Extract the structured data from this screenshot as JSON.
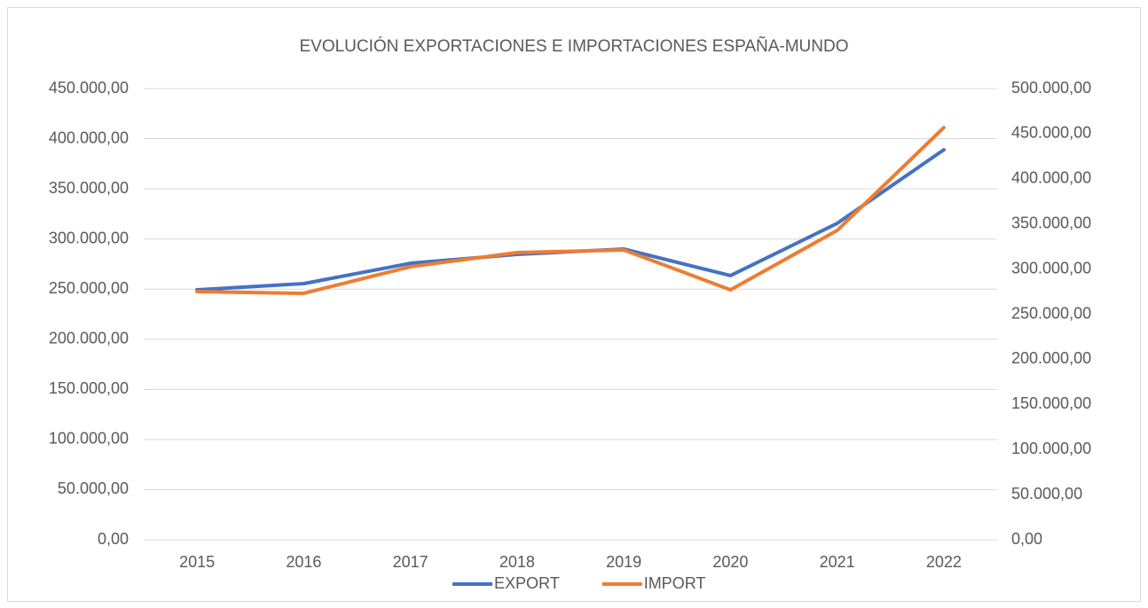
{
  "chart_data": {
    "type": "line",
    "title": "EVOLUCIÓN EXPORTACIONES E IMPORTACIONES ESPAÑA-MUNDO",
    "categories": [
      "2015",
      "2016",
      "2017",
      "2018",
      "2019",
      "2020",
      "2021",
      "2022"
    ],
    "series": [
      {
        "name": "EXPORT",
        "color": "#4472c4",
        "values": [
          249300,
          255500,
          275800,
          284700,
          290000,
          263500,
          315600,
          389000
        ]
      },
      {
        "name": "IMPORT",
        "color": "#ed7d31",
        "axis": "y2",
        "values": [
          275000,
          273100,
          302600,
          318300,
          321200,
          277000,
          342800,
          456800
        ]
      }
    ],
    "ylim": [
      0,
      450000
    ],
    "yticks": [
      {
        "value": 0,
        "label": "0,00"
      },
      {
        "value": 50000,
        "label": "50.000,00"
      },
      {
        "value": 100000,
        "label": "100.000,00"
      },
      {
        "value": 150000,
        "label": "150.000,00"
      },
      {
        "value": 200000,
        "label": "200.000,00"
      },
      {
        "value": 250000,
        "label": "250.000,00"
      },
      {
        "value": 300000,
        "label": "300.000,00"
      },
      {
        "value": 350000,
        "label": "350.000,00"
      },
      {
        "value": 400000,
        "label": "400.000,00"
      },
      {
        "value": 450000,
        "label": "450.000,00"
      }
    ],
    "y2lim": [
      0,
      500000
    ],
    "y2ticks": [
      {
        "value": 0,
        "label": "0,00"
      },
      {
        "value": 50000,
        "label": "50.000,00"
      },
      {
        "value": 100000,
        "label": "100.000,00"
      },
      {
        "value": 150000,
        "label": "150.000,00"
      },
      {
        "value": 200000,
        "label": "200.000,00"
      },
      {
        "value": 250000,
        "label": "250.000,00"
      },
      {
        "value": 300000,
        "label": "300.000,00"
      },
      {
        "value": 350000,
        "label": "350.000,00"
      },
      {
        "value": 400000,
        "label": "400.000,00"
      },
      {
        "value": 450000,
        "label": "450.000,00"
      },
      {
        "value": 500000,
        "label": "500.000,00"
      }
    ],
    "grid": true,
    "legend": "bottom"
  }
}
